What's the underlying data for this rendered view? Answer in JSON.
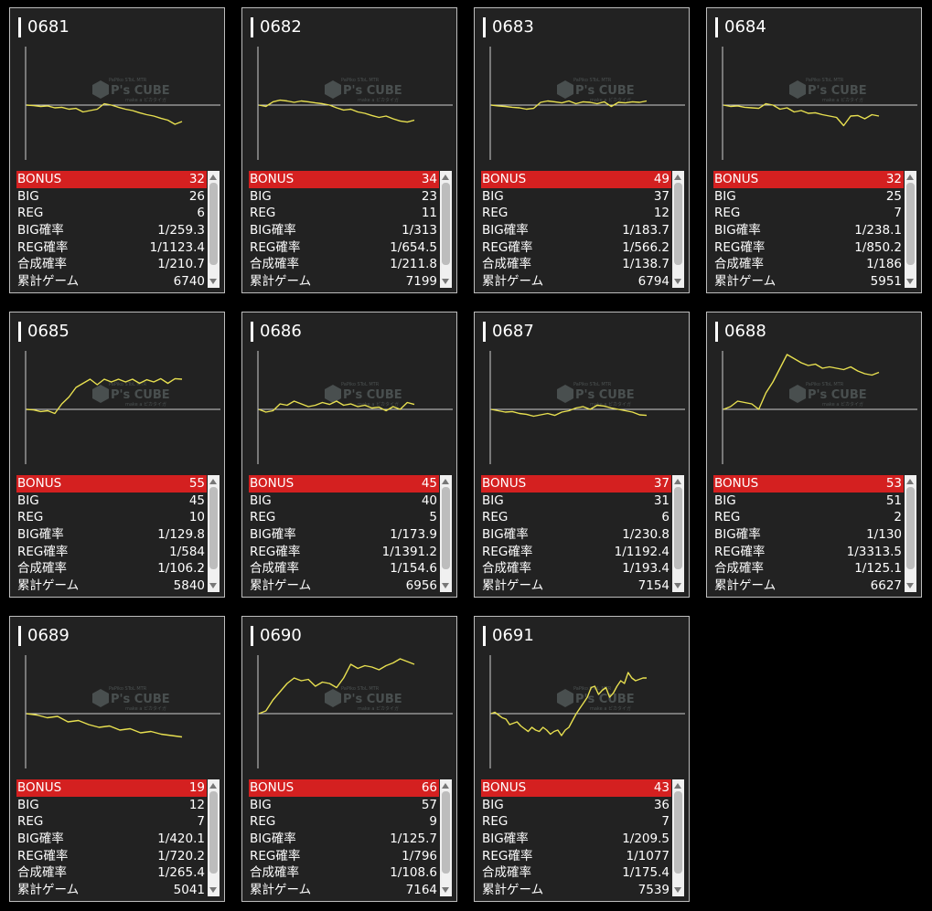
{
  "labels": {
    "bonus": "BONUS",
    "big": "BIG",
    "reg": "REG",
    "big_rate": "BIG確率",
    "reg_rate": "REG確率",
    "total_rate": "合成確率",
    "games": "累計ゲーム"
  },
  "watermark": {
    "small": "PaPiko SToL MTR",
    "brand": "P's CUBE",
    "sub": "make a ピカタイガ"
  },
  "colors": {
    "line": "#e8e050",
    "highlight": "#d42020",
    "panel": "#222222"
  },
  "machines": [
    {
      "id": "0681",
      "bonus": "32",
      "big": "26",
      "reg": "6",
      "big_rate": "1/259.3",
      "reg_rate": "1/1123.4",
      "total_rate": "1/210.7",
      "games": "6740",
      "trend": [
        0,
        -2,
        -5,
        -3,
        -10,
        -8,
        -15,
        -12,
        -25,
        -20,
        -15,
        5,
        0,
        -8,
        -15,
        -20,
        -28,
        -35,
        -40,
        -48,
        -55,
        -70,
        -60
      ]
    },
    {
      "id": "0682",
      "bonus": "34",
      "big": "23",
      "reg": "11",
      "big_rate": "1/313",
      "reg_rate": "1/654.5",
      "total_rate": "1/211.8",
      "games": "7199",
      "trend": [
        0,
        -5,
        12,
        18,
        15,
        10,
        15,
        12,
        8,
        5,
        0,
        -10,
        -18,
        -15,
        -25,
        -30,
        -38,
        -45,
        -40,
        -50,
        -58,
        -62,
        -55
      ]
    },
    {
      "id": "0683",
      "bonus": "49",
      "big": "37",
      "reg": "12",
      "big_rate": "1/183.7",
      "reg_rate": "1/566.2",
      "total_rate": "1/138.7",
      "games": "6794",
      "trend": [
        0,
        -3,
        -5,
        -8,
        -10,
        -15,
        -12,
        10,
        15,
        12,
        8,
        15,
        5,
        12,
        10,
        5,
        12,
        -5,
        10,
        8,
        12,
        10,
        15
      ]
    },
    {
      "id": "0684",
      "bonus": "32",
      "big": "25",
      "reg": "7",
      "big_rate": "1/238.1",
      "reg_rate": "1/850.2",
      "total_rate": "1/186",
      "games": "5951",
      "trend": [
        0,
        -5,
        -3,
        -8,
        -10,
        -12,
        5,
        0,
        -15,
        -10,
        -25,
        -20,
        -30,
        -28,
        -35,
        -40,
        -45,
        -75,
        -40,
        -38,
        -50,
        -35,
        -40
      ]
    },
    {
      "id": "0685",
      "bonus": "55",
      "big": "45",
      "reg": "10",
      "big_rate": "1/129.8",
      "reg_rate": "1/584",
      "total_rate": "1/106.2",
      "games": "5840",
      "trend": [
        0,
        -2,
        -8,
        -5,
        -15,
        20,
        45,
        80,
        95,
        110,
        90,
        110,
        100,
        110,
        100,
        110,
        95,
        108,
        100,
        112,
        95,
        112,
        110
      ]
    },
    {
      "id": "0686",
      "bonus": "45",
      "big": "40",
      "reg": "5",
      "big_rate": "1/173.9",
      "reg_rate": "1/1391.2",
      "total_rate": "1/154.6",
      "games": "6956",
      "trend": [
        0,
        -10,
        -5,
        20,
        15,
        30,
        20,
        10,
        15,
        25,
        18,
        30,
        15,
        20,
        10,
        15,
        5,
        8,
        -5,
        10,
        0,
        25,
        18
      ]
    },
    {
      "id": "0687",
      "bonus": "37",
      "big": "31",
      "reg": "6",
      "big_rate": "1/230.8",
      "reg_rate": "1/1192.4",
      "total_rate": "1/193.4",
      "games": "7154",
      "trend": [
        0,
        -5,
        -10,
        -8,
        -15,
        -18,
        -25,
        -20,
        -15,
        -22,
        -10,
        -5,
        5,
        10,
        0,
        15,
        12,
        5,
        0,
        -5,
        -10,
        -20,
        -22
      ]
    },
    {
      "id": "0688",
      "bonus": "53",
      "big": "51",
      "reg": "2",
      "big_rate": "1/130",
      "reg_rate": "1/3313.5",
      "total_rate": "1/125.1",
      "games": "6627",
      "trend": [
        0,
        10,
        30,
        25,
        20,
        0,
        60,
        100,
        150,
        200,
        185,
        170,
        160,
        165,
        150,
        155,
        150,
        145,
        155,
        140,
        130,
        125,
        135
      ]
    },
    {
      "id": "0689",
      "bonus": "19",
      "big": "12",
      "reg": "7",
      "big_rate": "1/420.1",
      "reg_rate": "1/720.2",
      "total_rate": "1/265.4",
      "games": "5041",
      "trend": [
        0,
        -5,
        -15,
        -10,
        -30,
        -25,
        -40,
        -50,
        -45,
        -60,
        -55,
        -70,
        -65,
        -75,
        -80,
        -85
      ]
    },
    {
      "id": "0690",
      "bonus": "66",
      "big": "57",
      "reg": "9",
      "big_rate": "1/125.7",
      "reg_rate": "1/796",
      "total_rate": "1/108.6",
      "games": "7164",
      "trend": [
        0,
        10,
        50,
        80,
        110,
        130,
        120,
        125,
        100,
        115,
        110,
        95,
        130,
        180,
        165,
        175,
        170,
        160,
        175,
        185,
        200,
        190,
        180
      ]
    },
    {
      "id": "0691",
      "bonus": "43",
      "big": "36",
      "reg": "7",
      "big_rate": "1/209.5",
      "reg_rate": "1/1077",
      "total_rate": "1/175.4",
      "games": "7539",
      "trend": [
        0,
        5,
        -5,
        -15,
        -20,
        -40,
        -35,
        -30,
        -45,
        -55,
        -65,
        -50,
        -60,
        -65,
        -50,
        -60,
        -75,
        -65,
        -60,
        -80,
        -60,
        -50,
        -25,
        0,
        20,
        40,
        60,
        95,
        100,
        70,
        85,
        95,
        60,
        75,
        100,
        120,
        110,
        150,
        130,
        120,
        125,
        130,
        130
      ]
    }
  ]
}
